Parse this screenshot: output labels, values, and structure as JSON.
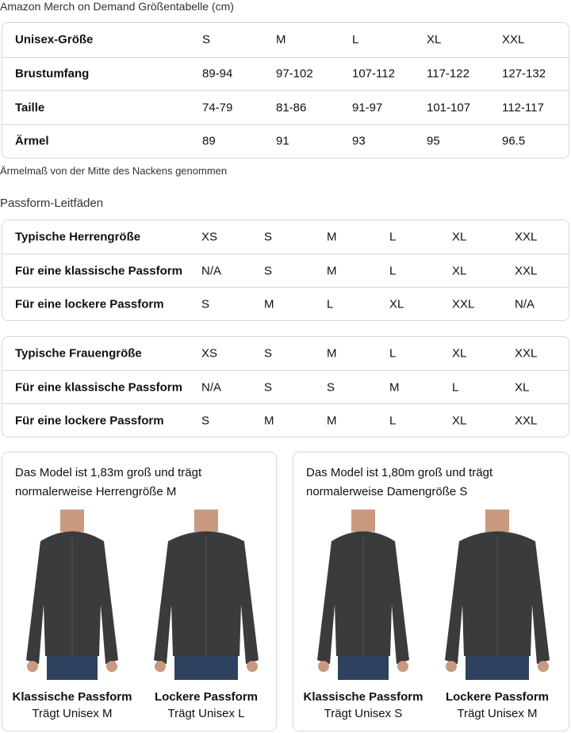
{
  "title": "Amazon Merch on Demand Größentabelle (cm)",
  "size_table": {
    "rows": [
      [
        "Unisex-Größe",
        "S",
        "M",
        "L",
        "XL",
        "XXL"
      ],
      [
        "Brustumfang",
        "89-94",
        "97-102",
        "107-112",
        "117-122",
        "127-132"
      ],
      [
        "Taille",
        "74-79",
        "81-86",
        "91-97",
        "101-107",
        "112-117"
      ],
      [
        "Ärmel",
        "89",
        "91",
        "93",
        "95",
        "96.5"
      ]
    ]
  },
  "note": "Ärmelmaß von der Mitte des Nackens genommen",
  "fit_title": "Passform-Leitfäden",
  "men_table": {
    "rows": [
      [
        "Typische Herrengröße",
        "XS",
        "S",
        "M",
        "L",
        "XL",
        "XXL"
      ],
      [
        "Für eine klassische Passform",
        "N/A",
        "S",
        "M",
        "L",
        "XL",
        "XXL"
      ],
      [
        "Für eine lockere Passform",
        "S",
        "M",
        "L",
        "XL",
        "XXL",
        "N/A"
      ]
    ]
  },
  "women_table": {
    "rows": [
      [
        "Typische Frauengröße",
        "XS",
        "S",
        "M",
        "L",
        "XL",
        "XXL"
      ],
      [
        "Für eine klassische Passform",
        "N/A",
        "S",
        "S",
        "M",
        "L",
        "XL"
      ],
      [
        "Für eine lockere Passform",
        "S",
        "M",
        "M",
        "L",
        "XL",
        "XXL"
      ]
    ]
  },
  "cards": [
    {
      "desc": "Das Model ist 1,83m groß und trägt normalerweise Herrengröße M",
      "fits": [
        {
          "name": "Klassische Passform",
          "size": "Trägt Unisex M"
        },
        {
          "name": "Lockere Passform",
          "size": "Trägt Unisex L"
        }
      ]
    },
    {
      "desc": "Das Model ist 1,80m groß und trägt normalerweise Damengröße S",
      "fits": [
        {
          "name": "Klassische Passform",
          "size": "Trägt Unisex S"
        },
        {
          "name": "Lockere Passform",
          "size": "Trägt Unisex M"
        }
      ]
    }
  ],
  "colors": {
    "hoodie": "#3a3b3d",
    "jeans": "#2e4260",
    "border": "#d5d9d9"
  }
}
